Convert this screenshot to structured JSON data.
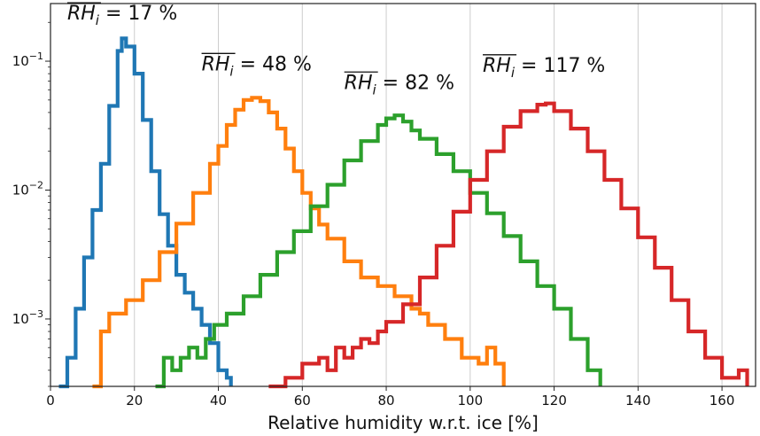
{
  "chart_data": {
    "type": "line",
    "subtype": "step histogram",
    "xlabel": "Relative humidity w.r.t. ice [%]",
    "ylabel": "",
    "xlim": [
      0,
      168
    ],
    "ylim": [
      0.0003,
      0.28
    ],
    "yscale": "log",
    "grid": "vertical lines at x ticks",
    "x_ticks": [
      0,
      20,
      40,
      60,
      80,
      100,
      120,
      140,
      160
    ],
    "x_tick_labels": [
      "0",
      "20",
      "40",
      "60",
      "80",
      "100",
      "120",
      "140",
      "160"
    ],
    "y_ticks": [
      0.001,
      0.01,
      0.1
    ],
    "y_tick_labels": [
      {
        "base": "10",
        "exp": "−3"
      },
      {
        "base": "10",
        "exp": "−2"
      },
      {
        "base": "10",
        "exp": "−1"
      }
    ],
    "series": [
      {
        "color": "#1f77b4",
        "annotation": {
          "symbol": "RH",
          "sub": "i",
          "text": " = 17 %",
          "at": [
            4,
            0.21
          ]
        },
        "x": [
          2,
          4,
          6,
          8,
          10,
          12,
          14,
          16,
          17,
          18,
          20,
          22,
          24,
          26,
          28,
          30,
          32,
          34,
          36,
          38,
          40,
          42,
          43
        ],
        "y": [
          0.0003,
          0.0005,
          0.0012,
          0.003,
          0.007,
          0.016,
          0.045,
          0.12,
          0.15,
          0.13,
          0.08,
          0.035,
          0.014,
          0.0065,
          0.0037,
          0.0022,
          0.0016,
          0.0012,
          0.0009,
          0.00065,
          0.0004,
          0.00035,
          0.0003
        ]
      },
      {
        "color": "#ff7f0e",
        "annotation": {
          "symbol": "RH",
          "sub": "i",
          "text": " = 48 %",
          "at": [
            36,
            0.085
          ]
        },
        "x": [
          10,
          12,
          14,
          18,
          22,
          26,
          30,
          34,
          38,
          40,
          42,
          44,
          46,
          48,
          50,
          52,
          54,
          56,
          58,
          60,
          62,
          64,
          66,
          70,
          74,
          78,
          82,
          86,
          88,
          90,
          94,
          98,
          102,
          104,
          106,
          108
        ],
        "y": [
          0.0003,
          0.0008,
          0.0011,
          0.0014,
          0.002,
          0.0033,
          0.0055,
          0.0095,
          0.016,
          0.022,
          0.032,
          0.042,
          0.05,
          0.052,
          0.049,
          0.04,
          0.03,
          0.021,
          0.014,
          0.0095,
          0.0072,
          0.0054,
          0.0042,
          0.0028,
          0.0021,
          0.0018,
          0.0015,
          0.0012,
          0.0011,
          0.0009,
          0.0007,
          0.0005,
          0.00045,
          0.0006,
          0.00045,
          0.0003
        ]
      },
      {
        "color": "#2ca02c",
        "annotation": {
          "symbol": "RH",
          "sub": "i",
          "text": " = 82 %",
          "at": [
            70,
            0.061
          ]
        },
        "x": [
          25,
          27,
          29,
          31,
          33,
          35,
          37,
          39,
          42,
          46,
          50,
          54,
          58,
          62,
          66,
          70,
          74,
          78,
          80,
          82,
          84,
          86,
          88,
          92,
          96,
          100,
          104,
          108,
          112,
          116,
          120,
          124,
          128,
          131
        ],
        "y": [
          0.0003,
          0.0005,
          0.0004,
          0.0005,
          0.0006,
          0.0005,
          0.0007,
          0.0009,
          0.0011,
          0.0015,
          0.0022,
          0.0033,
          0.0048,
          0.0075,
          0.011,
          0.017,
          0.024,
          0.032,
          0.036,
          0.038,
          0.034,
          0.029,
          0.025,
          0.019,
          0.014,
          0.0095,
          0.0066,
          0.0044,
          0.0028,
          0.0018,
          0.0012,
          0.0007,
          0.0004,
          0.0003
        ]
      },
      {
        "color": "#d62728",
        "annotation": {
          "symbol": "RH",
          "sub": "i",
          "text": " = 117 %",
          "at": [
            103,
            0.083
          ]
        },
        "x": [
          52,
          56,
          60,
          64,
          66,
          68,
          70,
          72,
          74,
          76,
          78,
          80,
          84,
          88,
          92,
          96,
          100,
          104,
          108,
          112,
          116,
          118,
          120,
          124,
          128,
          132,
          136,
          140,
          144,
          148,
          152,
          156,
          160,
          164,
          166
        ],
        "y": [
          0.0003,
          0.00035,
          0.00045,
          0.0005,
          0.0004,
          0.0006,
          0.0005,
          0.0006,
          0.0007,
          0.00065,
          0.0008,
          0.00095,
          0.0013,
          0.0021,
          0.0037,
          0.0068,
          0.012,
          0.02,
          0.031,
          0.041,
          0.046,
          0.047,
          0.041,
          0.03,
          0.02,
          0.012,
          0.0072,
          0.0043,
          0.0025,
          0.0014,
          0.0008,
          0.0005,
          0.00035,
          0.0004,
          0.0003
        ]
      }
    ]
  }
}
